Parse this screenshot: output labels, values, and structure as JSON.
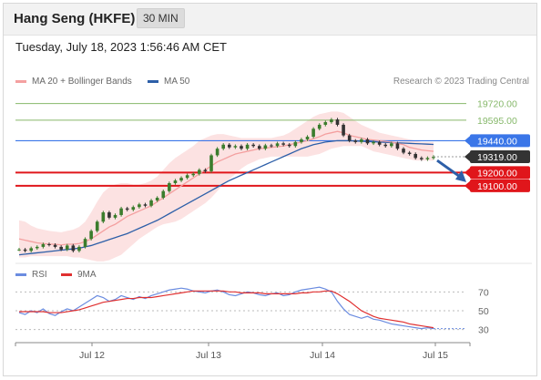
{
  "header": {
    "title": "Hang Seng (HKFE)",
    "timeframe": "30 MIN"
  },
  "timestamp": "Tuesday, July 18, 2023 1:56:46 AM CET",
  "legend": {
    "ma20": "MA 20 + Bollinger Bands",
    "ma50": "MA 50",
    "credit": "Research © 2023 Trading Central",
    "rsi": "RSI",
    "rsi_ma": "9MA"
  },
  "colors": {
    "ma20": "#f4a0a0",
    "ma50": "#2d5fa8",
    "band": "#fbd6d6",
    "up": "#3b7d2d",
    "down": "#333333",
    "green_level": "#86b86a",
    "blue_level": "#3a76e8",
    "red_level": "#e0161b",
    "current": "#333333",
    "rsi": "#6b8ce0",
    "rsi_ma": "#e03030"
  },
  "chart_data": [
    {
      "type": "line",
      "title": "",
      "x_ticks": [
        "Jul 12",
        "Jul 13",
        "Jul 14",
        "Jul 15"
      ],
      "levels": [
        {
          "value": 19720,
          "label": "19720.00",
          "kind": "target",
          "color": "#86b86a"
        },
        {
          "value": 19595,
          "label": "19595.00",
          "kind": "target",
          "color": "#86b86a"
        },
        {
          "value": 19440,
          "label": "19440.00",
          "kind": "pivot",
          "color": "#3a76e8"
        },
        {
          "value": 19319,
          "label": "19319.00",
          "kind": "current",
          "color": "#333333"
        },
        {
          "value": 19200,
          "label": "19200.00",
          "kind": "support",
          "color": "#e0161b"
        },
        {
          "value": 19100,
          "label": "19100.00",
          "kind": "support",
          "color": "#e0161b"
        }
      ],
      "ylim": [
        18550,
        19800
      ],
      "price": [
        18620,
        18610,
        18630,
        18640,
        18660,
        18655,
        18640,
        18620,
        18650,
        18610,
        18640,
        18700,
        18760,
        18830,
        18900,
        18860,
        18880,
        18930,
        18920,
        18940,
        18960,
        18950,
        18990,
        19010,
        19060,
        19120,
        19140,
        19160,
        19180,
        19190,
        19220,
        19210,
        19330,
        19380,
        19410,
        19390,
        19400,
        19380,
        19410,
        19400,
        19380,
        19405,
        19400,
        19420,
        19410,
        19400,
        19430,
        19450,
        19470,
        19530,
        19560,
        19580,
        19600,
        19560,
        19480,
        19440,
        19430,
        19450,
        19420,
        19430,
        19410,
        19400,
        19420,
        19380,
        19350,
        19340,
        19310,
        19300,
        19310,
        19319
      ],
      "ma20": [
        18700,
        18690,
        18680,
        18670,
        18665,
        18660,
        18660,
        18655,
        18660,
        18660,
        18665,
        18680,
        18700,
        18730,
        18760,
        18790,
        18810,
        18840,
        18870,
        18890,
        18910,
        18930,
        18950,
        18980,
        19010,
        19040,
        19070,
        19100,
        19130,
        19160,
        19190,
        19220,
        19250,
        19280,
        19300,
        19320,
        19340,
        19350,
        19360,
        19370,
        19380,
        19385,
        19390,
        19395,
        19400,
        19410,
        19420,
        19430,
        19440,
        19455,
        19470,
        19490,
        19500,
        19510,
        19500,
        19480,
        19470,
        19460,
        19450,
        19445,
        19440,
        19435,
        19430,
        19420,
        19410,
        19390,
        19380,
        19370,
        19365,
        19360
      ],
      "upper_band": [
        18840,
        18830,
        18800,
        18780,
        18770,
        18760,
        18755,
        18750,
        18760,
        18770,
        18790,
        18830,
        18900,
        18980,
        19050,
        19090,
        19110,
        19120,
        19120,
        19110,
        19110,
        19120,
        19140,
        19170,
        19220,
        19270,
        19310,
        19340,
        19370,
        19400,
        19440,
        19460,
        19480,
        19490,
        19490,
        19480,
        19470,
        19460,
        19460,
        19460,
        19460,
        19460,
        19460,
        19470,
        19480,
        19500,
        19530,
        19560,
        19590,
        19620,
        19640,
        19650,
        19660,
        19660,
        19650,
        19620,
        19590,
        19560,
        19540,
        19520,
        19500,
        19490,
        19480,
        19470,
        19460,
        19450,
        19440,
        19430,
        19430,
        19430
      ],
      "lower_band": [
        18560,
        18560,
        18570,
        18570,
        18570,
        18570,
        18570,
        18570,
        18570,
        18560,
        18560,
        18550,
        18540,
        18530,
        18530,
        18540,
        18560,
        18580,
        18620,
        18660,
        18700,
        18730,
        18760,
        18790,
        18810,
        18820,
        18830,
        18850,
        18880,
        18910,
        18940,
        18970,
        19010,
        19060,
        19110,
        19150,
        19190,
        19230,
        19260,
        19280,
        19300,
        19310,
        19320,
        19320,
        19320,
        19320,
        19320,
        19320,
        19320,
        19330,
        19340,
        19360,
        19380,
        19390,
        19400,
        19400,
        19400,
        19400,
        19380,
        19360,
        19350,
        19340,
        19330,
        19320,
        19310,
        19300,
        19290,
        19290,
        19290,
        19290
      ],
      "ma50": [
        18580,
        18585,
        18590,
        18595,
        18600,
        18605,
        18610,
        18615,
        18620,
        18625,
        18630,
        18640,
        18650,
        18665,
        18680,
        18695,
        18710,
        18725,
        18740,
        18760,
        18780,
        18800,
        18820,
        18840,
        18865,
        18890,
        18915,
        18940,
        18965,
        18990,
        19015,
        19040,
        19065,
        19090,
        19115,
        19140,
        19160,
        19180,
        19200,
        19220,
        19240,
        19260,
        19280,
        19300,
        19320,
        19340,
        19360,
        19380,
        19395,
        19410,
        19420,
        19430,
        19435,
        19440,
        19440,
        19440,
        19438,
        19436,
        19434,
        19432,
        19430,
        19428,
        19426,
        19424,
        19422,
        19420,
        19418,
        19416,
        19414,
        19412
      ]
    },
    {
      "type": "line",
      "title": "",
      "series": [
        {
          "name": "RSI"
        },
        {
          "name": "9MA"
        }
      ],
      "ylim": [
        20,
        80
      ],
      "y_ticks": [
        70,
        50,
        30
      ],
      "rsi": [
        48,
        46,
        50,
        48,
        52,
        47,
        45,
        49,
        52,
        50,
        54,
        58,
        62,
        66,
        64,
        60,
        62,
        66,
        64,
        62,
        65,
        63,
        66,
        68,
        70,
        72,
        73,
        74,
        73,
        71,
        70,
        69,
        71,
        72,
        70,
        67,
        66,
        68,
        70,
        69,
        67,
        66,
        68,
        69,
        66,
        67,
        70,
        72,
        73,
        74,
        75,
        73,
        70,
        60,
        52,
        46,
        44,
        42,
        44,
        41,
        40,
        38,
        36,
        35,
        34,
        33,
        32,
        31,
        32,
        31
      ],
      "rsi_ma": [
        49,
        49,
        49,
        49,
        49,
        48,
        48,
        48,
        49,
        50,
        51,
        53,
        55,
        57,
        59,
        60,
        61,
        62,
        63,
        63,
        64,
        64,
        64,
        65,
        66,
        67,
        68,
        69,
        70,
        71,
        71,
        71,
        71,
        71,
        71,
        70,
        70,
        69,
        69,
        69,
        69,
        68,
        68,
        68,
        68,
        68,
        68,
        69,
        69,
        70,
        70,
        71,
        71,
        68,
        64,
        60,
        55,
        50,
        47,
        44,
        42,
        41,
        40,
        39,
        38,
        36,
        35,
        34,
        33,
        32
      ]
    }
  ]
}
